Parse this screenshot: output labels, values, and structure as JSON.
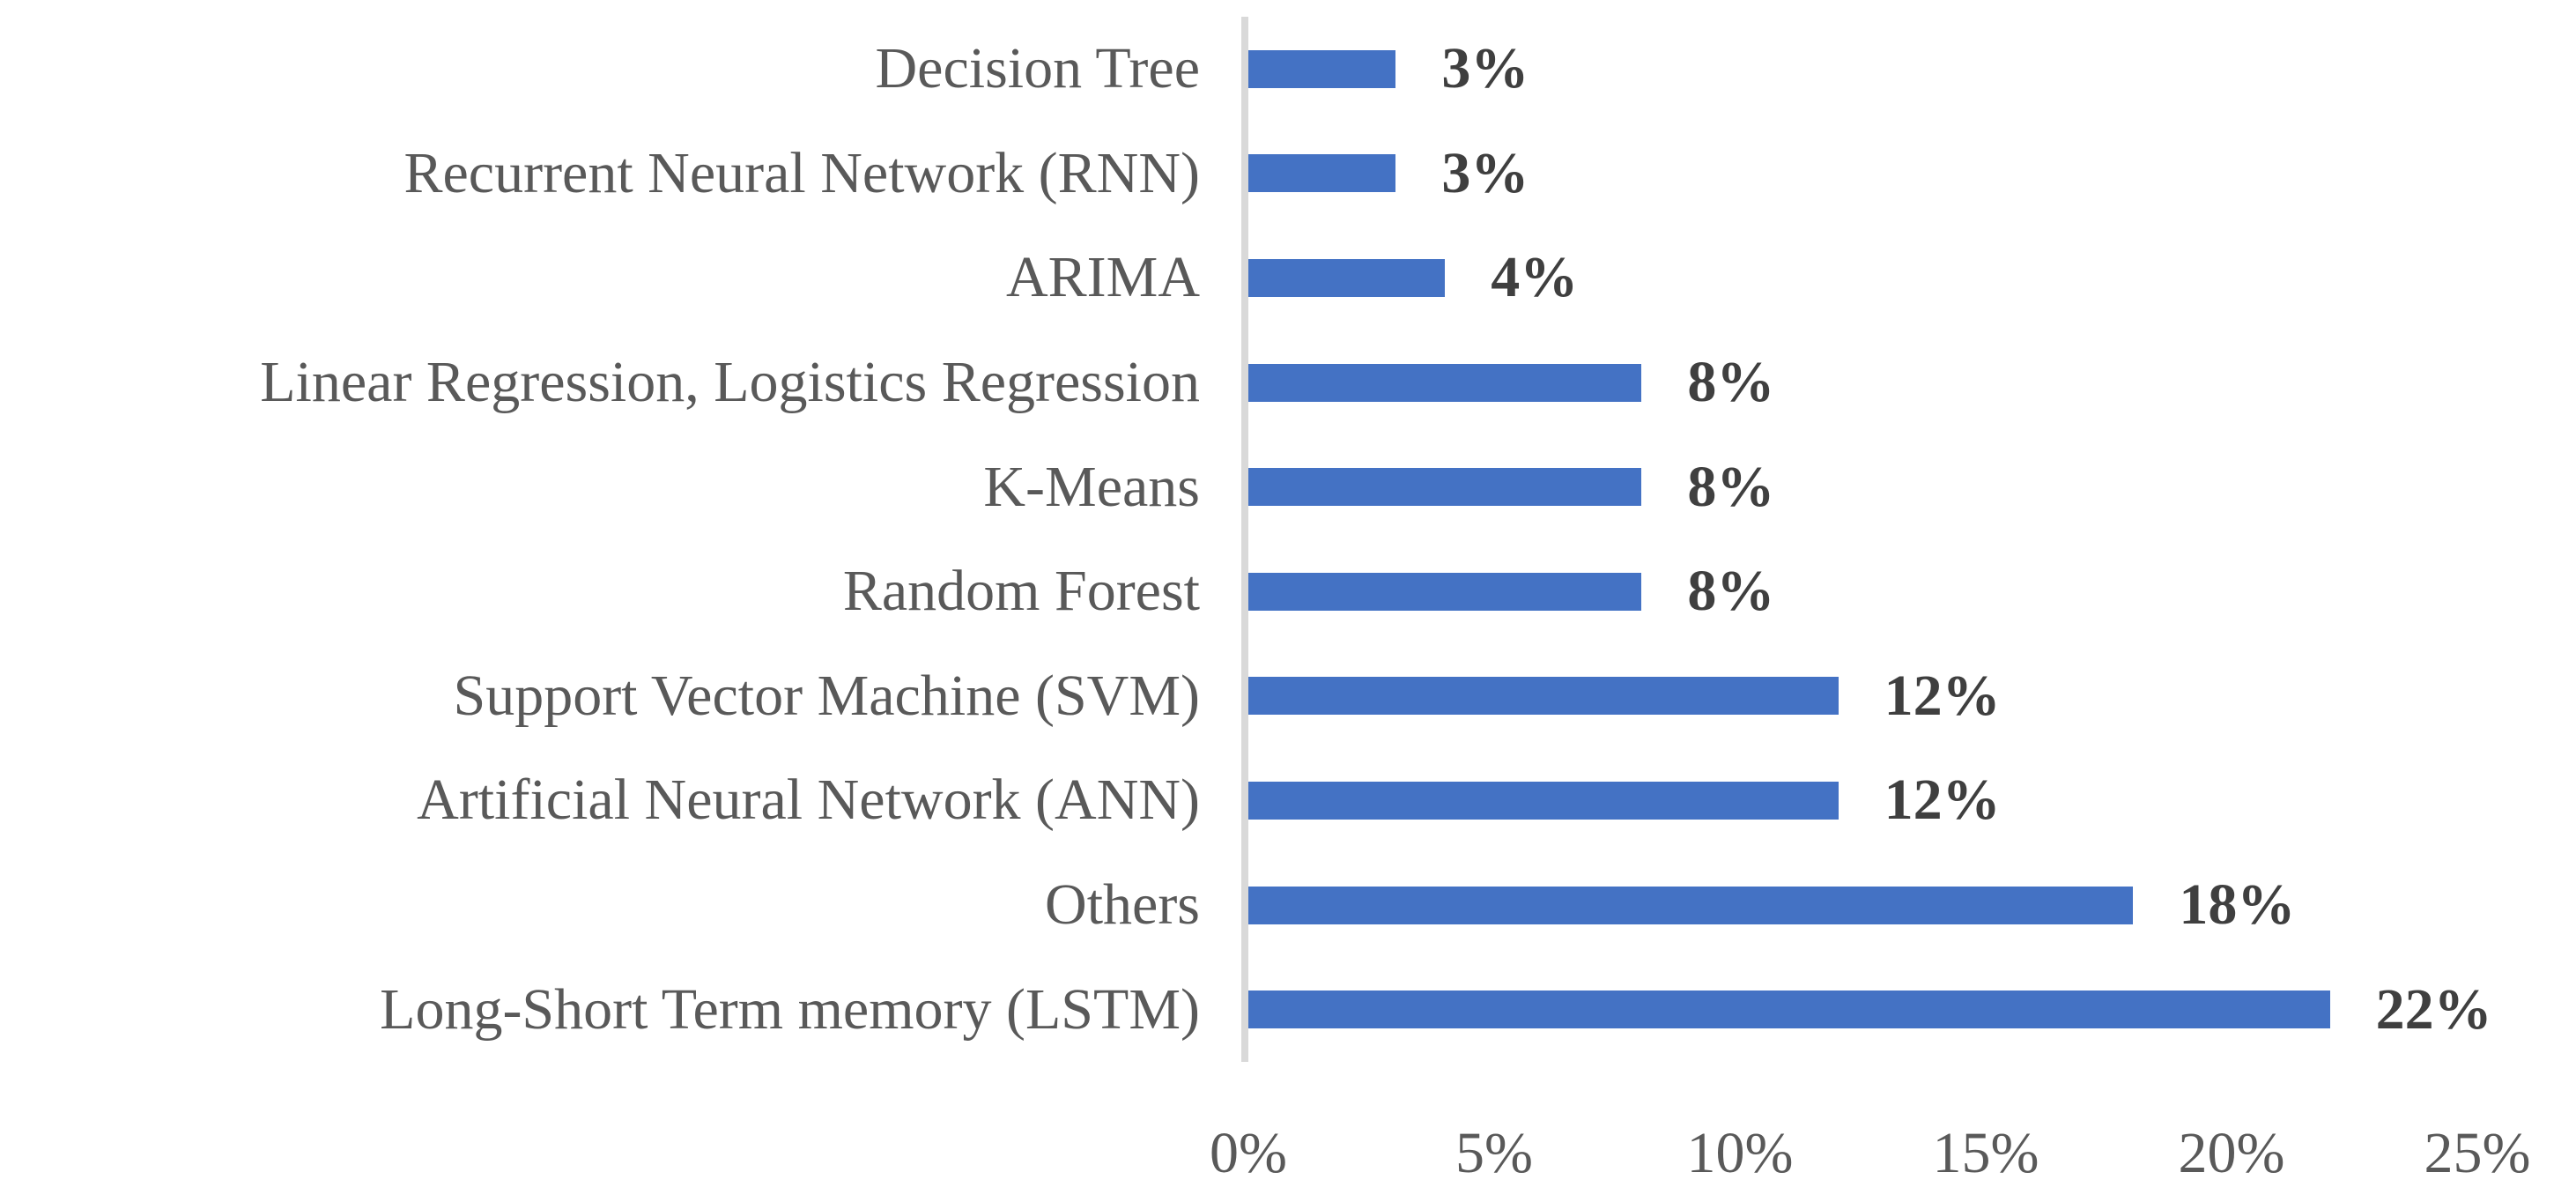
{
  "figure": {
    "background": "#ffffff"
  },
  "chart_data": {
    "type": "bar",
    "orientation": "horizontal",
    "title": "",
    "xlabel": "",
    "ylabel": "",
    "categories": [
      "Decision Tree",
      "Recurrent Neural Network (RNN)",
      "ARIMA",
      "Linear Regression, Logistics Regression",
      "K-Means",
      "Random Forest",
      "Support Vector Machine (SVM)",
      "Artificial Neural Network (ANN)",
      "Others",
      "Long-Short Term memory (LSTM)"
    ],
    "values": [
      3,
      3,
      4,
      8,
      8,
      8,
      12,
      12,
      18,
      22
    ],
    "data_labels": [
      "3%",
      "3%",
      "4%",
      "8%",
      "8%",
      "8%",
      "12%",
      "12%",
      "18%",
      "22%"
    ],
    "x_ticks": [
      "0%",
      "5%",
      "10%",
      "15%",
      "20%",
      "25%"
    ],
    "x_tick_values": [
      0,
      5,
      10,
      15,
      20,
      25
    ],
    "xlim": [
      0,
      25
    ],
    "grid": false,
    "legend": false,
    "data_labels_position": "outside-end",
    "colors": {
      "bar": "#4472C4",
      "category_label": "#595959",
      "data_label": "#3f3f3f",
      "tick_label": "#595959",
      "axis_line": "#D9D9D9"
    }
  }
}
